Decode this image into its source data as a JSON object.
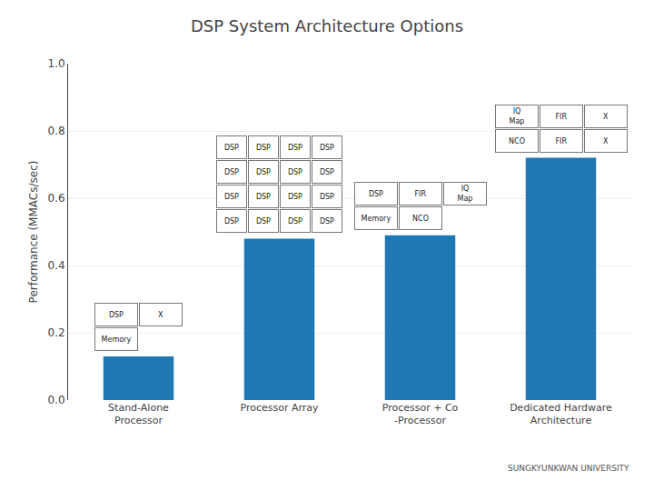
{
  "chart_data": {
    "type": "bar",
    "title": "DSP System Architecture Options",
    "ylabel": "Performance (MMACs/sec)",
    "categories": [
      "Stand-Alone\nProcessor",
      "Processor Array",
      "Processor + Co\n-Processor",
      "Dedicated Hardware\nArchitecture"
    ],
    "values": [
      0.13,
      0.48,
      0.49,
      0.72
    ],
    "ylim": [
      0,
      1.0
    ],
    "yticks": [
      {
        "value": 0,
        "label": "0.0"
      },
      0.2,
      0.4,
      0.6,
      0.8,
      {
        "value": 1.0,
        "label": "1.0"
      }
    ],
    "grid": true,
    "annotations": [
      {
        "category": "Stand-Alone\nProcessor",
        "text": "DSP"
      },
      {
        "category": "Stand-Alone\nProcessor",
        "text": "X"
      },
      {
        "category": "Stand-Alone\nProcessor",
        "text": "Memory"
      },
      {
        "category": "Processor Array",
        "text": "DSP"
      },
      {
        "category": "Processor Array",
        "text": "DSP"
      },
      {
        "category": "Processor Array",
        "text": "DSP"
      },
      {
        "category": "Processor Array",
        "text": "DSP"
      },
      {
        "category": "Processor Array",
        "text": "DSP"
      },
      {
        "category": "Processor Array",
        "text": "DSP"
      },
      {
        "category": "Processor Array",
        "text": "DSP"
      },
      {
        "category": "Processor Array",
        "text": "DSP"
      },
      {
        "category": "Processor Array",
        "text": "DSP"
      },
      {
        "category": "Processor Array",
        "text": "DSP"
      },
      {
        "category": "Processor Array",
        "text": "DSP"
      },
      {
        "category": "Processor Array",
        "text": "DSP"
      },
      {
        "category": "Processor Array",
        "text": "DSP"
      },
      {
        "category": "Processor Array",
        "text": "DSP"
      },
      {
        "category": "Processor Array",
        "text": "DSP"
      },
      {
        "category": "Processor Array",
        "text": "DSP"
      },
      {
        "category": "Processor + Co\n-Processor",
        "text": "DSP"
      },
      {
        "category": "Processor + Co\n-Processor",
        "text": "FIR"
      },
      {
        "category": "Processor + Co\n-Processor",
        "text": "IQ\nMap"
      },
      {
        "category": "Processor + Co\n-Processor",
        "text": "Memory"
      },
      {
        "category": "Processor + Co\n-Processor",
        "text": "NCO"
      },
      {
        "category": "Dedicated Hardware\nArchitecture",
        "text": "IQ\nMap"
      },
      {
        "category": "Dedicated Hardware\nArchitecture",
        "text": "FIR"
      },
      {
        "category": "Dedicated Hardware\nArchitecture",
        "text": "X"
      },
      {
        "category": "Dedicated Hardware\nArchitecture",
        "text": "NCO"
      },
      {
        "category": "Dedicated Hardware\nArchitecture",
        "text": "FIR"
      },
      {
        "category": "Dedicated Hardware\nArchitecture",
        "text": "X"
      },
      {
        "text": "SUNGKYUNKWAN UNIVERSITY"
      }
    ]
  }
}
